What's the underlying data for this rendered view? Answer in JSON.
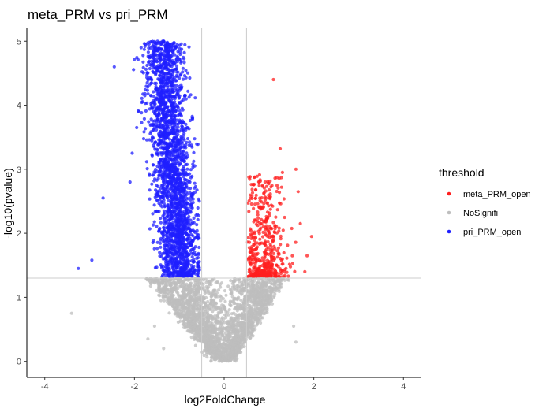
{
  "chart_data": {
    "type": "scatter",
    "title": "meta_PRM  vs pri_PRM",
    "xlabel": "log2FoldChange",
    "ylabel": "-log10(pvalue)",
    "xlim": [
      -4.4,
      4.4
    ],
    "ylim": [
      -0.25,
      5.2
    ],
    "x_ticks": [
      -4,
      -2,
      0,
      2,
      4
    ],
    "y_ticks": [
      0,
      1,
      2,
      3,
      4,
      5
    ],
    "x_tick_labels": [
      "-4",
      "-2",
      "0",
      "2",
      "4"
    ],
    "y_tick_labels": [
      "0",
      "1",
      "2",
      "3",
      "4",
      "5"
    ],
    "grid": false,
    "thresholds": {
      "log2fc": [
        -0.5,
        0.5
      ],
      "neg_log10_p": 1.3
    },
    "legend": {
      "title": "threshold",
      "position": "right",
      "entries": [
        {
          "label": "meta_PRM_open",
          "color": "#ff1f1f"
        },
        {
          "label": "NoSignifi",
          "color": "#bebebe"
        },
        {
          "label": "pri_PRM_open",
          "color": "#1f1fff"
        }
      ]
    },
    "series": [
      {
        "name": "pri_PRM_open",
        "color": "#1f1fff",
        "outliers": [
          [
            -2.45,
            4.6
          ],
          [
            -1.95,
            3.65
          ],
          [
            -2.05,
            3.25
          ],
          [
            -2.7,
            2.55
          ],
          [
            -2.95,
            1.58
          ],
          [
            -3.25,
            1.45
          ],
          [
            -2.1,
            2.8
          ],
          [
            -1.9,
            3.9
          ]
        ]
      },
      {
        "name": "meta_PRM_open",
        "color": "#ff1f1f",
        "outliers": [
          [
            1.1,
            4.4
          ],
          [
            1.25,
            3.32
          ],
          [
            1.6,
            3.0
          ],
          [
            1.95,
            1.95
          ],
          [
            1.85,
            1.65
          ],
          [
            1.8,
            1.4
          ],
          [
            1.65,
            2.65
          ],
          [
            1.3,
            2.95
          ],
          [
            1.7,
            2.15
          ]
        ]
      },
      {
        "name": "NoSignifi",
        "color": "#bebebe",
        "outliers": [
          [
            -3.4,
            0.75
          ],
          [
            -1.7,
            0.35
          ],
          [
            -1.55,
            0.55
          ],
          [
            1.55,
            0.55
          ],
          [
            1.6,
            0.3
          ],
          [
            -1.35,
            0.2
          ]
        ]
      }
    ]
  }
}
